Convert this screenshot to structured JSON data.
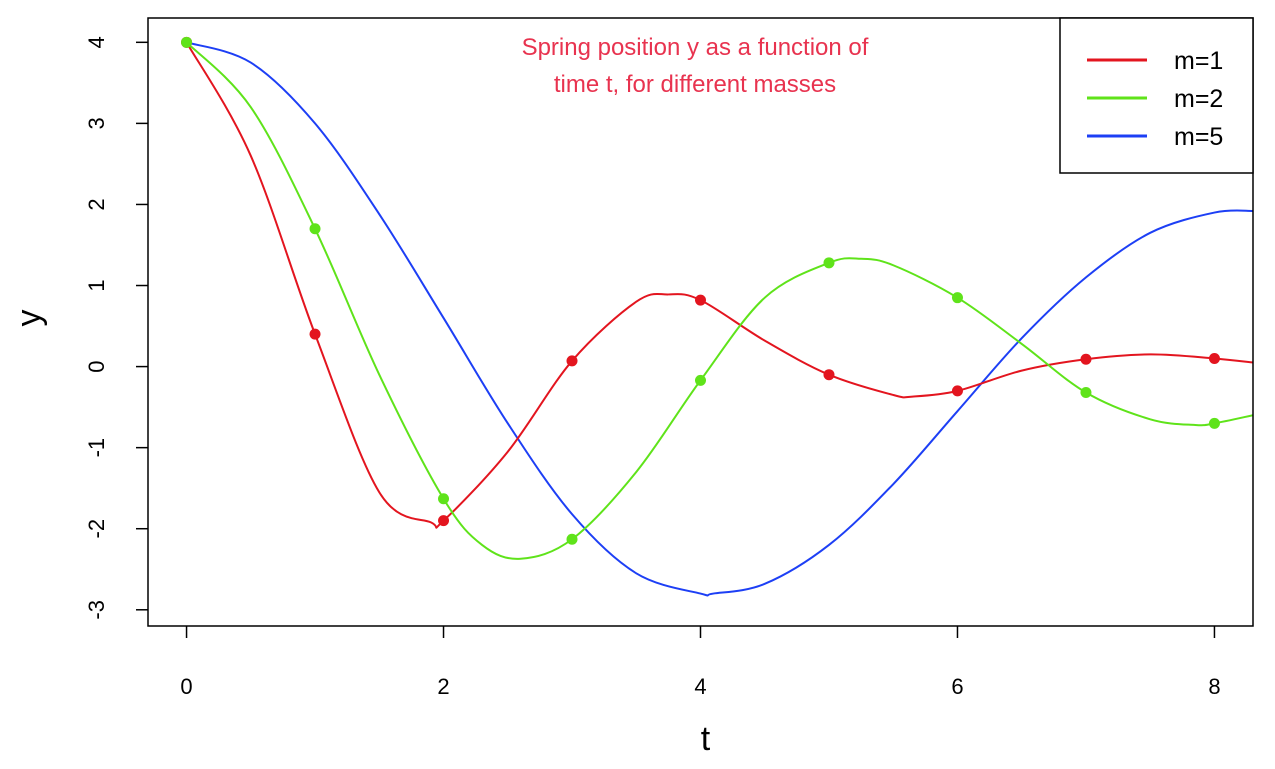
{
  "chart_data": {
    "type": "line",
    "title_lines": [
      "Spring position y as a function of",
      "time t, for different masses"
    ],
    "title_color": "#e8334f",
    "xlabel": "t",
    "ylabel": "y",
    "xlim": [
      -0.3,
      8.3
    ],
    "ylim": [
      -3.2,
      4.3
    ],
    "xticks": [
      0,
      2,
      4,
      6,
      8
    ],
    "xtick_labels": [
      "0",
      "2",
      "4",
      "6",
      "8"
    ],
    "yticks": [
      -3,
      -2,
      -1,
      0,
      1,
      2,
      3,
      4
    ],
    "ytick_labels": [
      "-3",
      "-2",
      "-1",
      "0",
      "1",
      "2",
      "3",
      "4"
    ],
    "grid": false,
    "legend_position": "top-right",
    "series": [
      {
        "name": "m=1",
        "color": "#e3151f",
        "x": [
          0,
          0.5,
          1,
          1.5,
          1.9,
          2,
          2.5,
          3,
          3.5,
          3.75,
          4,
          4.5,
          5,
          5.5,
          5.65,
          6,
          6.5,
          7,
          7.5,
          8,
          8.3
        ],
        "y": [
          4.0,
          2.6,
          0.4,
          -1.55,
          -1.92,
          -1.9,
          -1.05,
          0.07,
          0.8,
          0.89,
          0.82,
          0.32,
          -0.1,
          -0.35,
          -0.37,
          -0.3,
          -0.05,
          0.09,
          0.15,
          0.1,
          0.05
        ],
        "points_x": [
          0,
          1,
          2,
          3,
          4,
          5,
          6,
          7,
          8
        ],
        "points_y": [
          4.0,
          0.4,
          -1.9,
          0.07,
          0.82,
          -0.1,
          -0.3,
          0.09,
          0.1
        ]
      },
      {
        "name": "m=2",
        "color": "#5fe31a",
        "x": [
          0,
          0.5,
          1,
          1.5,
          2,
          2.3,
          2.6,
          3,
          3.5,
          4,
          4.5,
          5,
          5.25,
          5.5,
          6,
          6.5,
          7,
          7.5,
          7.85,
          8,
          8.3
        ],
        "y": [
          4.0,
          3.2,
          1.7,
          -0.1,
          -1.63,
          -2.2,
          -2.37,
          -2.13,
          -1.3,
          -0.17,
          0.85,
          1.28,
          1.33,
          1.25,
          0.85,
          0.28,
          -0.32,
          -0.65,
          -0.72,
          -0.7,
          -0.6
        ],
        "points_x": [
          0,
          1,
          2,
          3,
          4,
          5,
          6,
          7,
          8
        ],
        "points_y": [
          4.0,
          1.7,
          -1.63,
          -2.13,
          -0.17,
          1.28,
          0.85,
          -0.32,
          -0.7
        ]
      },
      {
        "name": "m=5",
        "color": "#1d3ff5",
        "x": [
          0,
          0.5,
          1,
          1.5,
          2,
          2.5,
          3,
          3.5,
          4,
          4.1,
          4.5,
          5,
          5.5,
          6,
          6.5,
          7,
          7.5,
          8,
          8.3
        ],
        "y": [
          4.0,
          3.75,
          3.0,
          1.88,
          0.6,
          -0.7,
          -1.82,
          -2.55,
          -2.8,
          -2.8,
          -2.68,
          -2.2,
          -1.45,
          -0.55,
          0.35,
          1.1,
          1.65,
          1.9,
          1.92
        ],
        "points_x": [],
        "points_y": []
      }
    ]
  }
}
